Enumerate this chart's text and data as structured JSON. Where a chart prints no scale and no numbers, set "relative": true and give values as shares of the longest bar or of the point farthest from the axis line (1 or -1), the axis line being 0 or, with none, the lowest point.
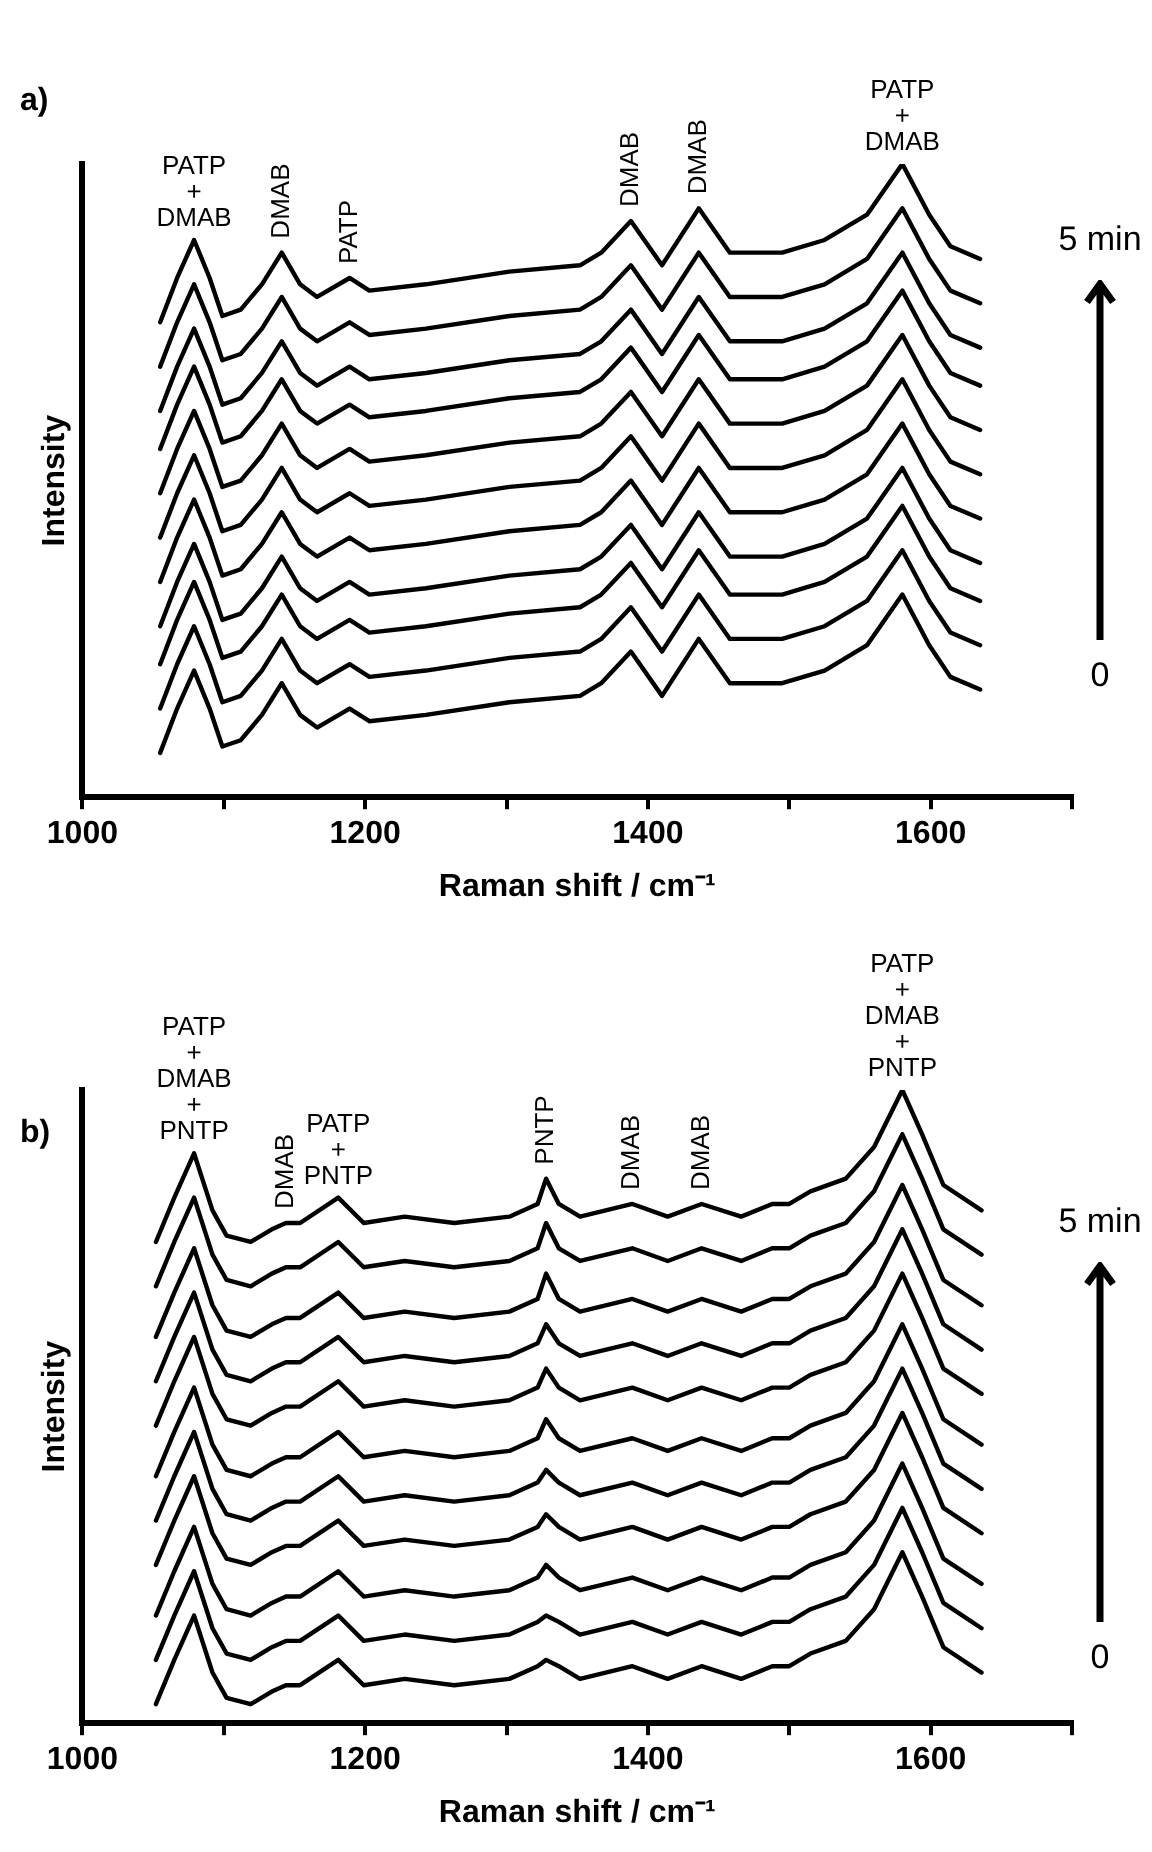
{
  "chart_data": [
    {
      "type": "line",
      "title": "a)",
      "xlabel": "Raman shift / cm⁻¹",
      "ylabel": "Intensity",
      "relative": true,
      "tick_labels": "x",
      "grid": false,
      "legend": false,
      "xlim": [
        1000,
        1700
      ],
      "xticks": [
        1000,
        {
          "value": 1100,
          "label": null
        },
        1200,
        {
          "value": 1300,
          "label": null
        },
        1400,
        {
          "value": 1500,
          "label": null
        },
        1600,
        {
          "value": 1700,
          "label": null
        }
      ],
      "x": [
        1055,
        1067,
        1079,
        1090,
        1099,
        1112,
        1127,
        1141,
        1154,
        1166,
        1189,
        1203,
        1243,
        1302,
        1352,
        1367,
        1388,
        1410,
        1436,
        1458,
        1495,
        1525,
        1555,
        1580,
        1599,
        1614,
        1635
      ],
      "series": [
        {
          "color": "#000000",
          "values": [
            0.07,
            0.14,
            0.2,
            0.14,
            0.08,
            0.09,
            0.13,
            0.18,
            0.13,
            0.11,
            0.14,
            0.12,
            0.13,
            0.15,
            0.16,
            0.18,
            0.23,
            0.16,
            0.25,
            0.18,
            0.18,
            0.2,
            0.24,
            0.32,
            0.24,
            0.19,
            0.17
          ]
        },
        {
          "color": "#000000",
          "values": [
            0.14,
            0.21,
            0.27,
            0.21,
            0.15,
            0.16,
            0.2,
            0.25,
            0.2,
            0.18,
            0.21,
            0.19,
            0.2,
            0.22,
            0.23,
            0.25,
            0.3,
            0.23,
            0.32,
            0.25,
            0.25,
            0.27,
            0.31,
            0.39,
            0.31,
            0.26,
            0.24
          ]
        },
        {
          "color": "#000000",
          "values": [
            0.21,
            0.28,
            0.34,
            0.28,
            0.22,
            0.23,
            0.27,
            0.32,
            0.27,
            0.25,
            0.28,
            0.26,
            0.27,
            0.29,
            0.3,
            0.32,
            0.37,
            0.3,
            0.39,
            0.32,
            0.32,
            0.34,
            0.38,
            0.46,
            0.38,
            0.33,
            0.31
          ]
        },
        {
          "color": "#000000",
          "values": [
            0.27,
            0.34,
            0.4,
            0.34,
            0.28,
            0.29,
            0.33,
            0.38,
            0.33,
            0.31,
            0.34,
            0.32,
            0.33,
            0.35,
            0.36,
            0.38,
            0.43,
            0.36,
            0.45,
            0.38,
            0.38,
            0.4,
            0.44,
            0.52,
            0.44,
            0.39,
            0.37
          ]
        },
        {
          "color": "#000000",
          "values": [
            0.34,
            0.41,
            0.47,
            0.41,
            0.35,
            0.36,
            0.4,
            0.45,
            0.4,
            0.38,
            0.41,
            0.39,
            0.4,
            0.42,
            0.43,
            0.45,
            0.5,
            0.43,
            0.52,
            0.45,
            0.45,
            0.47,
            0.51,
            0.59,
            0.51,
            0.46,
            0.44
          ]
        },
        {
          "color": "#000000",
          "values": [
            0.41,
            0.48,
            0.54,
            0.48,
            0.42,
            0.43,
            0.47,
            0.52,
            0.47,
            0.45,
            0.48,
            0.46,
            0.47,
            0.49,
            0.5,
            0.52,
            0.57,
            0.5,
            0.59,
            0.52,
            0.52,
            0.54,
            0.58,
            0.66,
            0.58,
            0.53,
            0.51
          ]
        },
        {
          "color": "#000000",
          "values": [
            0.48,
            0.55,
            0.61,
            0.55,
            0.49,
            0.5,
            0.54,
            0.59,
            0.54,
            0.52,
            0.55,
            0.53,
            0.54,
            0.56,
            0.57,
            0.59,
            0.64,
            0.57,
            0.66,
            0.59,
            0.59,
            0.61,
            0.65,
            0.73,
            0.65,
            0.6,
            0.58
          ]
        },
        {
          "color": "#000000",
          "values": [
            0.55,
            0.62,
            0.68,
            0.62,
            0.56,
            0.57,
            0.61,
            0.66,
            0.61,
            0.59,
            0.62,
            0.6,
            0.61,
            0.63,
            0.64,
            0.66,
            0.71,
            0.64,
            0.73,
            0.66,
            0.66,
            0.68,
            0.72,
            0.8,
            0.72,
            0.67,
            0.65
          ]
        },
        {
          "color": "#000000",
          "values": [
            0.61,
            0.68,
            0.74,
            0.68,
            0.62,
            0.63,
            0.67,
            0.72,
            0.67,
            0.65,
            0.68,
            0.66,
            0.67,
            0.69,
            0.7,
            0.72,
            0.77,
            0.7,
            0.79,
            0.72,
            0.72,
            0.74,
            0.78,
            0.86,
            0.78,
            0.73,
            0.71
          ]
        },
        {
          "color": "#000000",
          "values": [
            0.68,
            0.75,
            0.81,
            0.75,
            0.69,
            0.7,
            0.74,
            0.79,
            0.74,
            0.72,
            0.75,
            0.73,
            0.74,
            0.76,
            0.77,
            0.79,
            0.84,
            0.77,
            0.86,
            0.79,
            0.79,
            0.81,
            0.85,
            0.93,
            0.85,
            0.8,
            0.78
          ]
        },
        {
          "color": "#000000",
          "values": [
            0.75,
            0.82,
            0.88,
            0.82,
            0.76,
            0.77,
            0.81,
            0.86,
            0.81,
            0.79,
            0.82,
            0.8,
            0.81,
            0.83,
            0.84,
            0.86,
            0.91,
            0.84,
            0.93,
            0.86,
            0.86,
            0.88,
            0.92,
            1.0,
            0.92,
            0.87,
            0.85
          ]
        }
      ],
      "annotations": [
        {
          "text": "PATP\n+\nDMAB",
          "x": 1079,
          "y": 0.88
        },
        {
          "text": "DMAB",
          "x": 1141,
          "y": 0.86
        },
        {
          "text": "PATP",
          "x": 1189,
          "y": 0.82
        },
        {
          "text": "DMAB",
          "x": 1388,
          "y": 0.91
        },
        {
          "text": "DMAB",
          "x": 1436,
          "y": 0.93
        },
        {
          "text": "PATP\n+\nDMAB",
          "x": 1580,
          "y": 1.0
        },
        "5 min",
        "0"
      ]
    },
    {
      "type": "line",
      "title": "b)",
      "xlabel": "Raman shift / cm⁻¹",
      "ylabel": "Intensity",
      "relative": true,
      "tick_labels": "x",
      "grid": false,
      "legend": false,
      "xlim": [
        1000,
        1700
      ],
      "xticks": [
        1000,
        {
          "value": 1100,
          "label": null
        },
        1200,
        {
          "value": 1300,
          "label": null
        },
        1400,
        {
          "value": 1500,
          "label": null
        },
        1600,
        {
          "value": 1700,
          "label": null
        }
      ],
      "x": [
        1052,
        1065,
        1079,
        1092,
        1102,
        1119,
        1134,
        1144,
        1154,
        1181,
        1199,
        1228,
        1263,
        1302,
        1322,
        1328,
        1337,
        1352,
        1389,
        1414,
        1438,
        1466,
        1488,
        1500,
        1515,
        1540,
        1560,
        1580,
        1594,
        1609,
        1636
      ],
      "series": [
        {
          "color": "#000000",
          "values": [
            0.03,
            0.1,
            0.17,
            0.08,
            0.04,
            0.03,
            0.05,
            0.06,
            0.06,
            0.1,
            0.06,
            0.07,
            0.06,
            0.07,
            0.09,
            0.1,
            0.09,
            0.07,
            0.09,
            0.07,
            0.09,
            0.07,
            0.09,
            0.09,
            0.11,
            0.13,
            0.18,
            0.27,
            0.2,
            0.12,
            0.08
          ]
        },
        {
          "color": "#000000",
          "values": [
            0.1,
            0.17,
            0.24,
            0.15,
            0.11,
            0.1,
            0.12,
            0.13,
            0.13,
            0.17,
            0.13,
            0.14,
            0.13,
            0.14,
            0.16,
            0.17,
            0.16,
            0.14,
            0.16,
            0.14,
            0.16,
            0.14,
            0.16,
            0.16,
            0.18,
            0.2,
            0.25,
            0.34,
            0.27,
            0.19,
            0.15
          ]
        },
        {
          "color": "#000000",
          "values": [
            0.17,
            0.24,
            0.31,
            0.22,
            0.18,
            0.17,
            0.19,
            0.2,
            0.2,
            0.24,
            0.2,
            0.21,
            0.2,
            0.21,
            0.23,
            0.25,
            0.23,
            0.21,
            0.23,
            0.21,
            0.23,
            0.21,
            0.23,
            0.23,
            0.25,
            0.27,
            0.32,
            0.41,
            0.34,
            0.26,
            0.22
          ]
        },
        {
          "color": "#000000",
          "values": [
            0.25,
            0.32,
            0.39,
            0.3,
            0.26,
            0.25,
            0.27,
            0.28,
            0.28,
            0.32,
            0.28,
            0.29,
            0.28,
            0.29,
            0.31,
            0.33,
            0.31,
            0.29,
            0.31,
            0.29,
            0.31,
            0.29,
            0.31,
            0.31,
            0.33,
            0.35,
            0.4,
            0.49,
            0.42,
            0.34,
            0.3
          ]
        },
        {
          "color": "#000000",
          "values": [
            0.32,
            0.39,
            0.46,
            0.37,
            0.33,
            0.32,
            0.34,
            0.35,
            0.35,
            0.39,
            0.35,
            0.36,
            0.35,
            0.36,
            0.38,
            0.4,
            0.38,
            0.36,
            0.38,
            0.36,
            0.38,
            0.36,
            0.38,
            0.38,
            0.4,
            0.42,
            0.47,
            0.56,
            0.49,
            0.41,
            0.37
          ]
        },
        {
          "color": "#000000",
          "values": [
            0.39,
            0.46,
            0.53,
            0.44,
            0.4,
            0.39,
            0.41,
            0.42,
            0.42,
            0.46,
            0.42,
            0.43,
            0.42,
            0.43,
            0.45,
            0.48,
            0.45,
            0.43,
            0.45,
            0.43,
            0.45,
            0.43,
            0.45,
            0.45,
            0.47,
            0.49,
            0.54,
            0.63,
            0.56,
            0.48,
            0.44
          ]
        },
        {
          "color": "#000000",
          "values": [
            0.47,
            0.54,
            0.61,
            0.52,
            0.48,
            0.47,
            0.49,
            0.5,
            0.5,
            0.54,
            0.5,
            0.51,
            0.5,
            0.51,
            0.53,
            0.56,
            0.53,
            0.51,
            0.53,
            0.51,
            0.53,
            0.51,
            0.53,
            0.53,
            0.55,
            0.57,
            0.62,
            0.71,
            0.64,
            0.56,
            0.52
          ]
        },
        {
          "color": "#000000",
          "values": [
            0.54,
            0.61,
            0.68,
            0.59,
            0.55,
            0.54,
            0.56,
            0.57,
            0.57,
            0.61,
            0.57,
            0.58,
            0.57,
            0.58,
            0.6,
            0.63,
            0.6,
            0.58,
            0.6,
            0.58,
            0.6,
            0.58,
            0.6,
            0.6,
            0.62,
            0.64,
            0.69,
            0.78,
            0.71,
            0.63,
            0.59
          ]
        },
        {
          "color": "#000000",
          "values": [
            0.61,
            0.68,
            0.75,
            0.66,
            0.62,
            0.61,
            0.63,
            0.64,
            0.64,
            0.68,
            0.64,
            0.65,
            0.64,
            0.65,
            0.67,
            0.71,
            0.67,
            0.65,
            0.67,
            0.65,
            0.67,
            0.65,
            0.67,
            0.67,
            0.69,
            0.71,
            0.76,
            0.85,
            0.78,
            0.7,
            0.66
          ]
        },
        {
          "color": "#000000",
          "values": [
            0.69,
            0.76,
            0.83,
            0.74,
            0.7,
            0.69,
            0.71,
            0.72,
            0.72,
            0.76,
            0.72,
            0.73,
            0.72,
            0.73,
            0.75,
            0.79,
            0.75,
            0.73,
            0.75,
            0.73,
            0.75,
            0.73,
            0.75,
            0.75,
            0.77,
            0.79,
            0.84,
            0.93,
            0.86,
            0.78,
            0.74
          ]
        },
        {
          "color": "#000000",
          "values": [
            0.76,
            0.83,
            0.9,
            0.81,
            0.77,
            0.76,
            0.78,
            0.79,
            0.79,
            0.83,
            0.79,
            0.8,
            0.79,
            0.8,
            0.82,
            0.86,
            0.82,
            0.8,
            0.82,
            0.8,
            0.82,
            0.8,
            0.82,
            0.82,
            0.84,
            0.86,
            0.91,
            1.0,
            0.93,
            0.85,
            0.81
          ]
        }
      ],
      "annotations": [
        {
          "text": "PATP\n+\nDMAB\n+\nPNTP",
          "x": 1079,
          "y": 0.9
        },
        {
          "text": "DMAB",
          "x": 1144,
          "y": 0.79
        },
        {
          "text": "PATP\n+\nPNTP",
          "x": 1181,
          "y": 0.83
        },
        {
          "text": "PNTP",
          "x": 1328,
          "y": 0.86
        },
        {
          "text": "DMAB",
          "x": 1389,
          "y": 0.82
        },
        {
          "text": "DMAB",
          "x": 1438,
          "y": 0.82
        },
        {
          "text": "PATP\n+\nDMAB\n+\nPNTP",
          "x": 1580,
          "y": 1.0
        },
        "5 min",
        "0"
      ]
    }
  ]
}
